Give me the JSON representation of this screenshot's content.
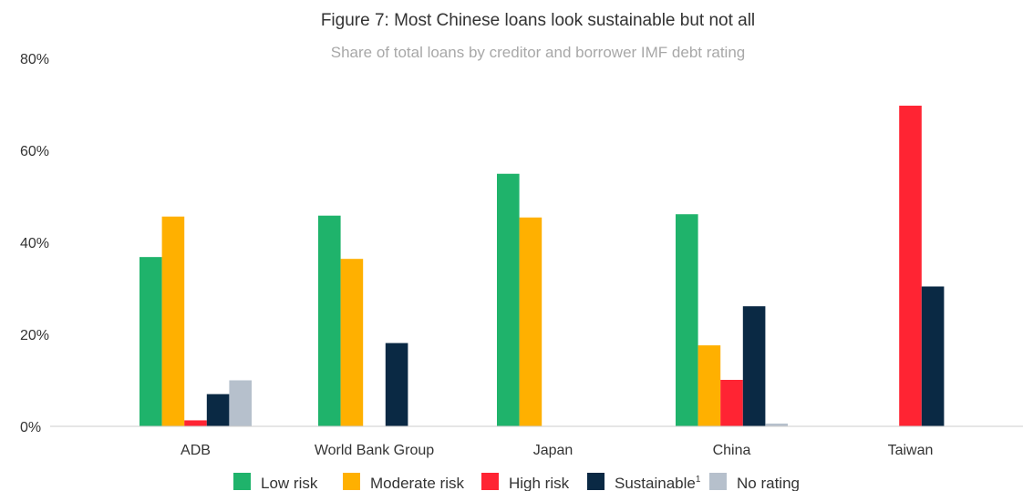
{
  "chart_data": {
    "type": "bar",
    "title": "Figure 7: Most Chinese loans look sustainable but not all",
    "subtitle": "Share of total loans by creditor and borrower IMF debt rating",
    "categories": [
      "ADB",
      "World Bank Group",
      "Japan",
      "China",
      "Taiwan"
    ],
    "series": [
      {
        "name": "Low risk",
        "color": "#1fb36b",
        "values": [
          36.8,
          45.8,
          54.9,
          46.1,
          0
        ]
      },
      {
        "name": "Moderate risk",
        "color": "#ffb000",
        "values": [
          45.6,
          36.4,
          45.4,
          17.6,
          0
        ]
      },
      {
        "name": "High risk",
        "color": "#ff2433",
        "values": [
          1.3,
          0,
          0,
          10.1,
          69.7
        ]
      },
      {
        "name": "Sustainable",
        "color": "#0a2944",
        "values": [
          7.0,
          18.1,
          0,
          26.1,
          30.4
        ]
      },
      {
        "name": "No rating",
        "color": "#b6c0cc",
        "values": [
          10.0,
          0,
          0,
          0.6,
          0
        ]
      }
    ],
    "legend_sup": "1",
    "yticks": [
      "0%",
      "20%",
      "40%",
      "60%",
      "80%"
    ],
    "ylim": [
      0,
      80
    ],
    "grid": false,
    "legend_position": "bottom"
  }
}
